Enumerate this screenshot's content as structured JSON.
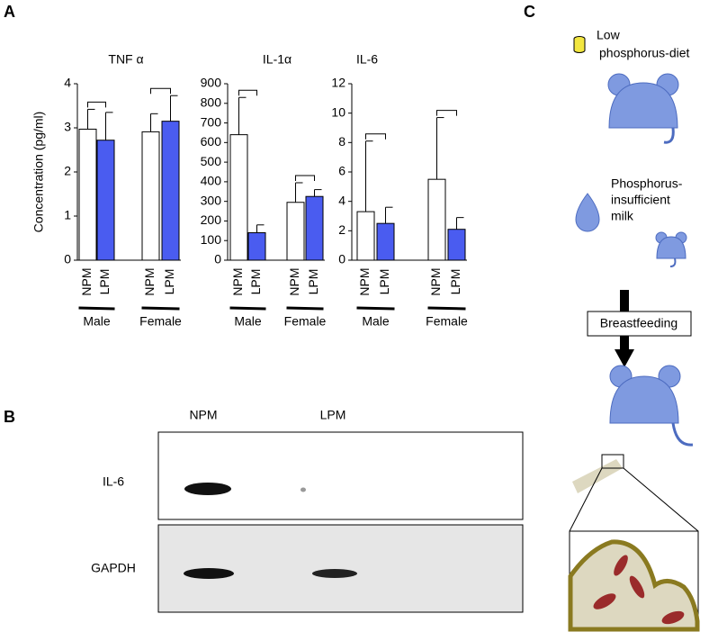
{
  "panels": {
    "a": "A",
    "b": "B",
    "c": "C"
  },
  "chart_data": [
    {
      "type": "bar",
      "title": "TNF α",
      "ylabel": "Concentration (pg/ml)",
      "categories": [
        "NPM",
        "LPM",
        "NPM",
        "LPM"
      ],
      "groups": [
        "Male",
        "Female"
      ],
      "values": [
        2.97,
        2.72,
        2.91,
        3.15
      ],
      "errors": [
        0.45,
        0.63,
        0.41,
        0.58
      ],
      "colors": [
        "#ffffff",
        "#4a5cf0",
        "#ffffff",
        "#4a5cf0"
      ],
      "ylim": [
        0,
        4
      ],
      "yticks": [
        0,
        1,
        2,
        3,
        4
      ]
    },
    {
      "type": "bar",
      "title": "IL-1α",
      "categories": [
        "NPM",
        "LPM",
        "NPM",
        "LPM"
      ],
      "groups": [
        "Male",
        "Female"
      ],
      "values": [
        640,
        140,
        295,
        325
      ],
      "errors": [
        190,
        40,
        100,
        35
      ],
      "colors": [
        "#ffffff",
        "#4a5cf0",
        "#ffffff",
        "#4a5cf0"
      ],
      "ylim": [
        0,
        900
      ],
      "yticks": [
        0,
        100,
        200,
        300,
        400,
        500,
        600,
        700,
        800,
        900
      ]
    },
    {
      "type": "bar",
      "title": "IL-6",
      "categories": [
        "NPM",
        "LPM",
        "NPM",
        "LPM"
      ],
      "groups": [
        "Male",
        "Female"
      ],
      "values": [
        3.3,
        2.5,
        5.5,
        2.1
      ],
      "errors": [
        4.8,
        1.1,
        4.2,
        0.8
      ],
      "colors": [
        "#ffffff",
        "#4a5cf0",
        "#ffffff",
        "#4a5cf0"
      ],
      "ylim": [
        0,
        12
      ],
      "yticks": [
        0,
        2,
        4,
        6,
        8,
        10,
        12
      ]
    }
  ],
  "blot": {
    "columns": [
      "NPM",
      "LPM"
    ],
    "rows": [
      "IL-6",
      "GAPDH"
    ]
  },
  "diagram": {
    "diet": [
      "Low",
      "phosphorus-diet"
    ],
    "milk": [
      "Phosphorus-",
      "insufficient",
      "milk"
    ],
    "step": "Breastfeeding"
  }
}
